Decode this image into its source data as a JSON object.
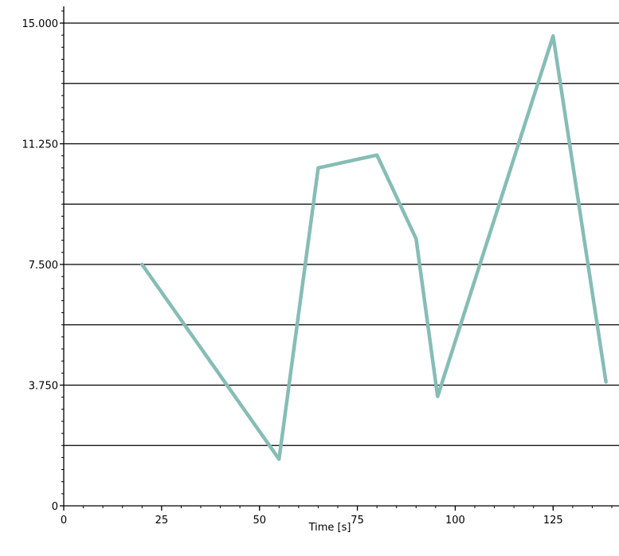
{
  "chart_data": {
    "type": "line",
    "xlabel": "Time [s]",
    "ylabel": "",
    "title": "",
    "xlim": [
      0,
      140
    ],
    "ylim": [
      0,
      15
    ],
    "x_ticks": [
      0,
      25,
      50,
      75,
      100,
      125
    ],
    "x_tick_labels": [
      "0",
      "25",
      "50",
      "75",
      "100",
      "125"
    ],
    "y_ticks": [
      0,
      3.75,
      7.5,
      11.25,
      15
    ],
    "y_tick_labels": [
      "0",
      "3.750",
      "7.500",
      "11.250",
      "15.000"
    ],
    "y_gridlines": [
      1.875,
      3.75,
      5.625,
      7.5,
      9.375,
      11.25,
      13.125,
      15
    ],
    "grid": "horizontal",
    "series": [
      {
        "color": "#86bdb6",
        "x": [
          20,
          55,
          65,
          80,
          90,
          95.5,
          125,
          138.5
        ],
        "y": [
          7.5,
          1.45,
          10.5,
          10.9,
          8.3,
          3.4,
          14.6,
          3.85
        ]
      }
    ]
  }
}
